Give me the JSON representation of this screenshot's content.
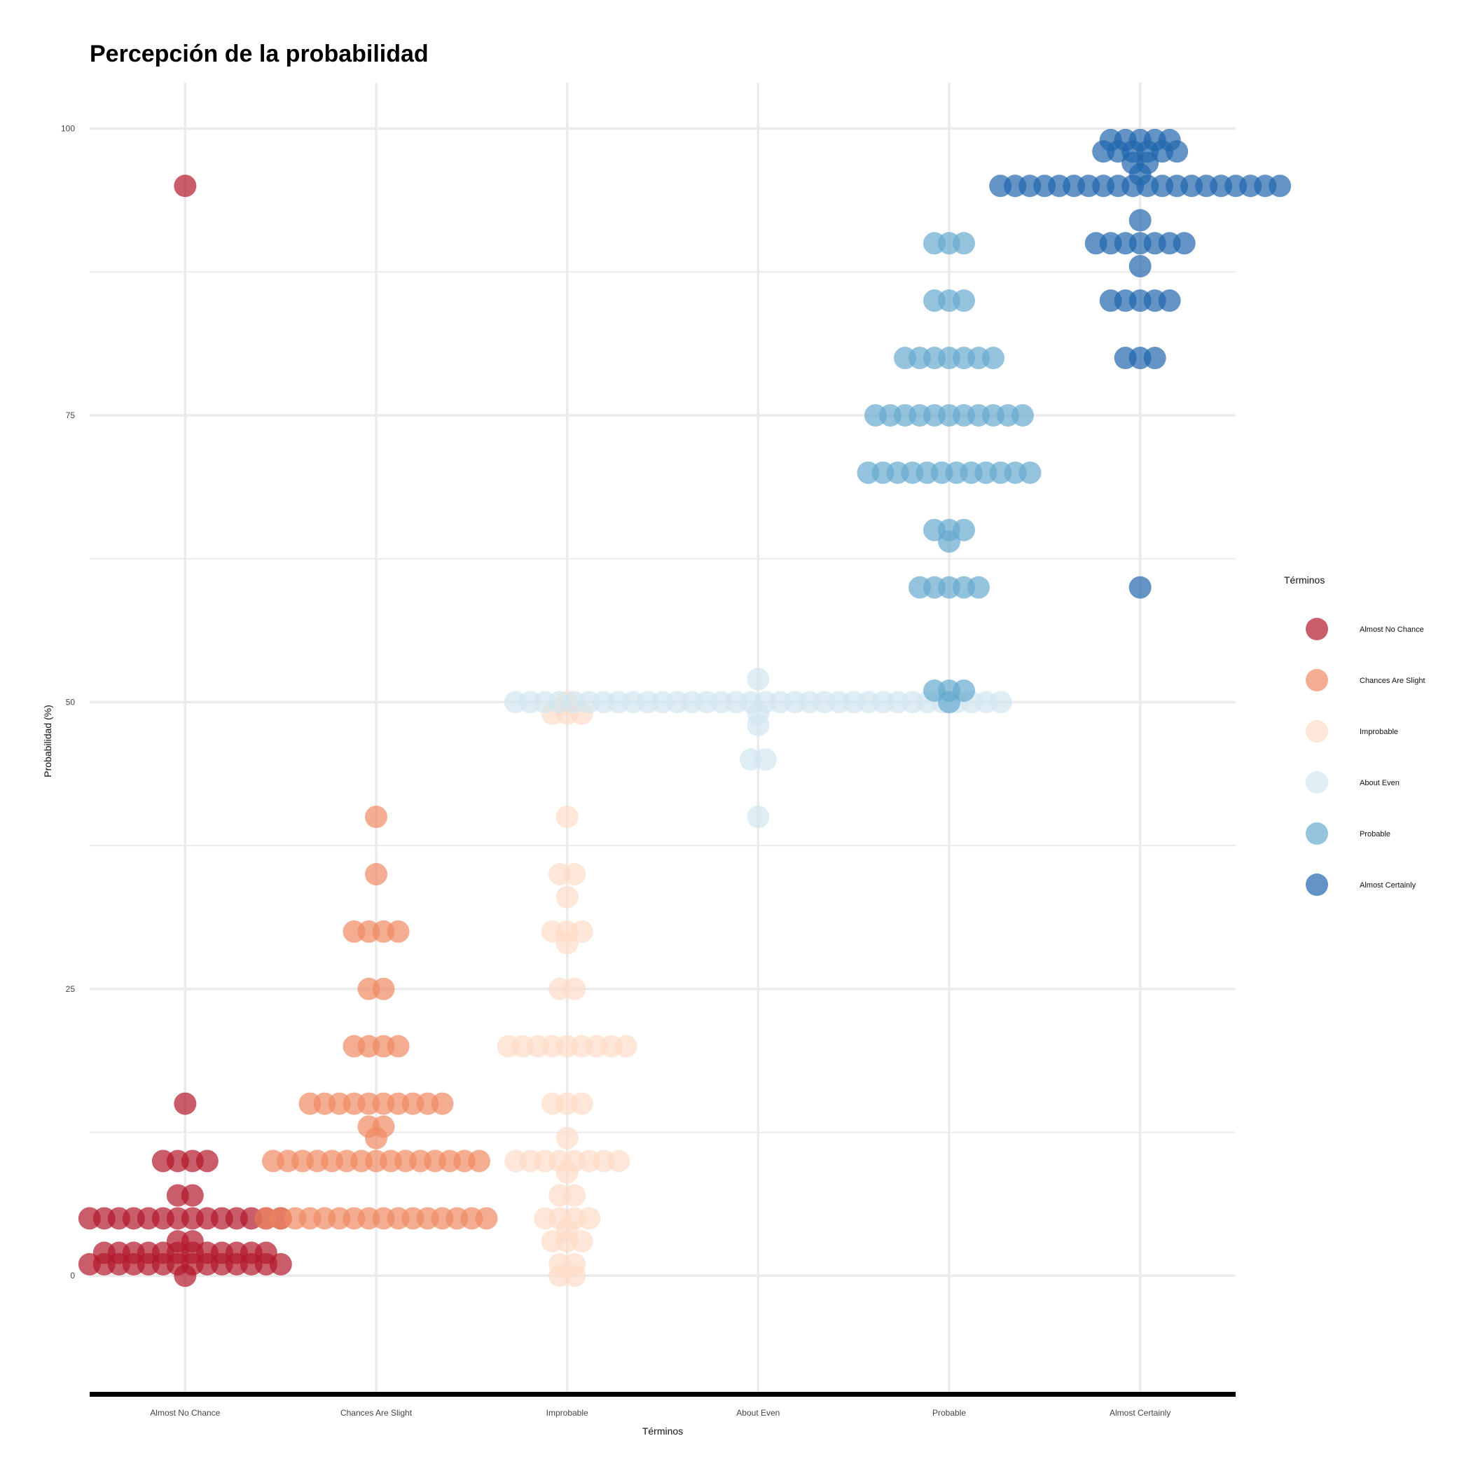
{
  "chart_data": {
    "type": "scatter",
    "title": "Percepción de la probabilidad",
    "xlabel": "Términos",
    "ylabel": "Probabilidad (%)",
    "ylim": [
      -10,
      104
    ],
    "yticks": [
      0,
      25,
      50,
      75,
      100
    ],
    "grid": true,
    "legend": {
      "title": "Términos",
      "placement": "right"
    },
    "categories": [
      "Almost No Chance",
      "Chances Are Slight",
      "Improbable",
      "About Even",
      "Probable",
      "Almost Certainly"
    ],
    "series": [
      {
        "name": "Almost No Chance",
        "color": "#b2182b",
        "values": [
          95,
          15,
          10,
          10,
          10,
          10,
          7,
          7,
          5,
          5,
          5,
          5,
          5,
          5,
          5,
          5,
          5,
          5,
          5,
          5,
          5,
          5,
          3,
          3,
          2,
          2,
          2,
          2,
          2,
          2,
          2,
          2,
          2,
          2,
          2,
          2,
          1,
          1,
          1,
          1,
          1,
          1,
          1,
          1,
          1,
          1,
          1,
          1,
          1,
          1,
          0
        ]
      },
      {
        "name": "Chances Are Slight",
        "color": "#ef8a62",
        "values": [
          40,
          35,
          30,
          30,
          30,
          30,
          25,
          25,
          20,
          20,
          20,
          20,
          15,
          15,
          15,
          15,
          15,
          15,
          15,
          15,
          15,
          15,
          13,
          13,
          12,
          10,
          10,
          10,
          10,
          10,
          10,
          10,
          10,
          10,
          10,
          10,
          10,
          10,
          10,
          10,
          5,
          5,
          5,
          5,
          5,
          5,
          5,
          5,
          5,
          5,
          5,
          5,
          5,
          5,
          5,
          5
        ]
      },
      {
        "name": "Improbable",
        "color": "#fddbc7",
        "values": [
          50,
          49,
          49,
          49,
          40,
          35,
          35,
          33,
          30,
          30,
          30,
          29,
          25,
          25,
          20,
          20,
          20,
          20,
          20,
          20,
          20,
          20,
          20,
          15,
          15,
          15,
          12,
          10,
          10,
          10,
          10,
          10,
          10,
          10,
          10,
          9,
          7,
          7,
          5,
          5,
          5,
          5,
          4,
          3,
          3,
          3,
          1,
          1,
          0,
          0
        ]
      },
      {
        "name": "About Even",
        "color": "#d1e5f0",
        "values": [
          52,
          50,
          50,
          50,
          50,
          50,
          50,
          50,
          50,
          50,
          50,
          50,
          50,
          50,
          50,
          50,
          50,
          50,
          50,
          50,
          50,
          50,
          50,
          50,
          50,
          50,
          50,
          50,
          50,
          50,
          50,
          50,
          50,
          50,
          50,
          49,
          48,
          45,
          45,
          40
        ]
      },
      {
        "name": "Probable",
        "color": "#67a9cf",
        "values": [
          90,
          90,
          90,
          85,
          85,
          85,
          80,
          80,
          80,
          80,
          80,
          80,
          80,
          75,
          75,
          75,
          75,
          75,
          75,
          75,
          75,
          75,
          75,
          75,
          70,
          70,
          70,
          70,
          70,
          70,
          70,
          70,
          70,
          70,
          70,
          70,
          65,
          65,
          65,
          64,
          60,
          60,
          60,
          60,
          60,
          51,
          51,
          51,
          50
        ]
      },
      {
        "name": "Almost Certainly",
        "color": "#2166ac",
        "values": [
          99,
          99,
          99,
          99,
          99,
          98,
          98,
          98,
          98,
          98,
          98,
          97,
          97,
          96,
          95,
          95,
          95,
          95,
          95,
          95,
          95,
          95,
          95,
          95,
          95,
          95,
          95,
          95,
          95,
          95,
          95,
          95,
          95,
          95,
          92,
          90,
          90,
          90,
          90,
          90,
          90,
          90,
          88,
          85,
          85,
          85,
          85,
          85,
          80,
          80,
          80,
          60
        ]
      }
    ]
  }
}
